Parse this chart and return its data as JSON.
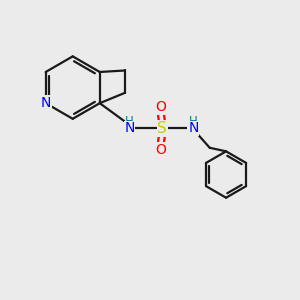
{
  "background_color": "#ebebeb",
  "bond_color": "#1a1a1a",
  "N_color": "#0000ff",
  "S_color": "#cccc00",
  "O_color": "#ff0000",
  "H_color": "#008080",
  "figsize": [
    3.0,
    3.0
  ],
  "dpi": 100,
  "xlim": [
    0,
    10
  ],
  "ylim": [
    0,
    10
  ]
}
